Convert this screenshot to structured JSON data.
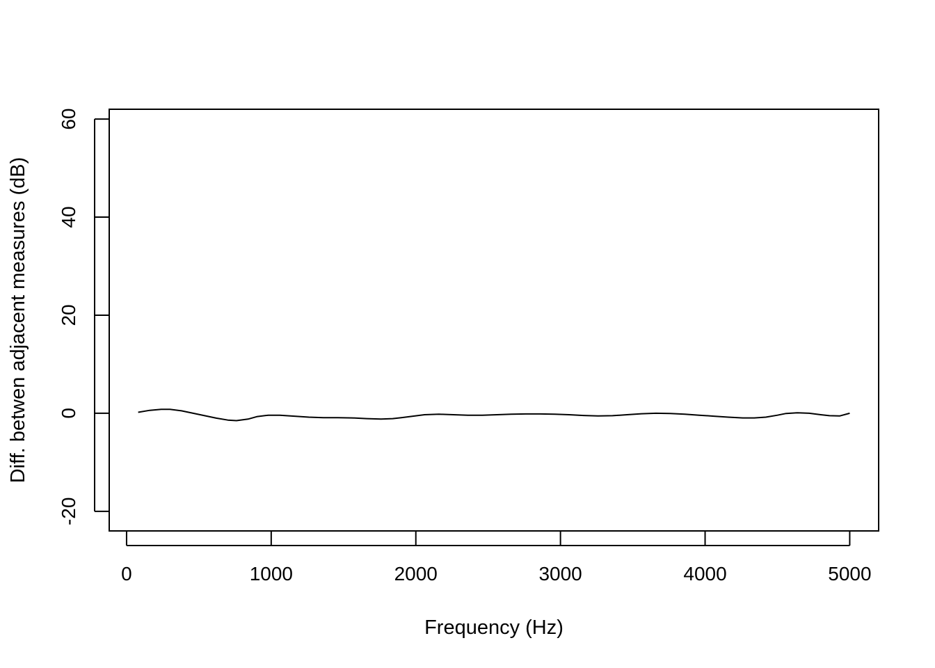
{
  "chart_data": {
    "type": "line",
    "title": "",
    "xlabel": "Frequency (Hz)",
    "ylabel": "Diff. betwen adjacent measures (dB)",
    "xlim": [
      -120,
      5200
    ],
    "ylim": [
      -24,
      62
    ],
    "xticks": [
      0,
      1000,
      2000,
      3000,
      4000,
      5000
    ],
    "xtick_labels": [
      "0",
      "1000",
      "2000",
      "3000",
      "4000",
      "5000"
    ],
    "yticks": [
      -20,
      0,
      20,
      40,
      60
    ],
    "ytick_labels": [
      "-20",
      "0",
      "20",
      "40",
      "60"
    ],
    "grid": false,
    "legend": "none",
    "line_color": "#000000",
    "series": [
      {
        "x": [
          80,
          160,
          240,
          300,
          380,
          460,
          540,
          620,
          700,
          760,
          840,
          900,
          980,
          1060,
          1160,
          1260,
          1360,
          1460,
          1560,
          1660,
          1760,
          1840,
          1900,
          1980,
          2060,
          2160,
          2260,
          2360,
          2460,
          2560,
          2660,
          2760,
          2860,
          2960,
          3060,
          3160,
          3260,
          3360,
          3460,
          3560,
          3660,
          3760,
          3860,
          3960,
          4060,
          4160,
          4260,
          4340,
          4420,
          4500,
          4560,
          4640,
          4720,
          4800,
          4860,
          4930,
          5000
        ],
        "y": [
          0.2,
          0.6,
          0.8,
          0.8,
          0.5,
          0.0,
          -0.5,
          -1.0,
          -1.4,
          -1.5,
          -1.2,
          -0.7,
          -0.4,
          -0.4,
          -0.6,
          -0.8,
          -0.9,
          -0.9,
          -0.95,
          -1.1,
          -1.2,
          -1.1,
          -0.9,
          -0.6,
          -0.3,
          -0.2,
          -0.3,
          -0.4,
          -0.4,
          -0.3,
          -0.2,
          -0.15,
          -0.15,
          -0.2,
          -0.3,
          -0.45,
          -0.55,
          -0.5,
          -0.3,
          -0.1,
          0.0,
          -0.05,
          -0.2,
          -0.4,
          -0.6,
          -0.8,
          -0.95,
          -0.95,
          -0.8,
          -0.4,
          -0.05,
          0.1,
          0.0,
          -0.3,
          -0.5,
          -0.55,
          0.0
        ]
      }
    ]
  }
}
